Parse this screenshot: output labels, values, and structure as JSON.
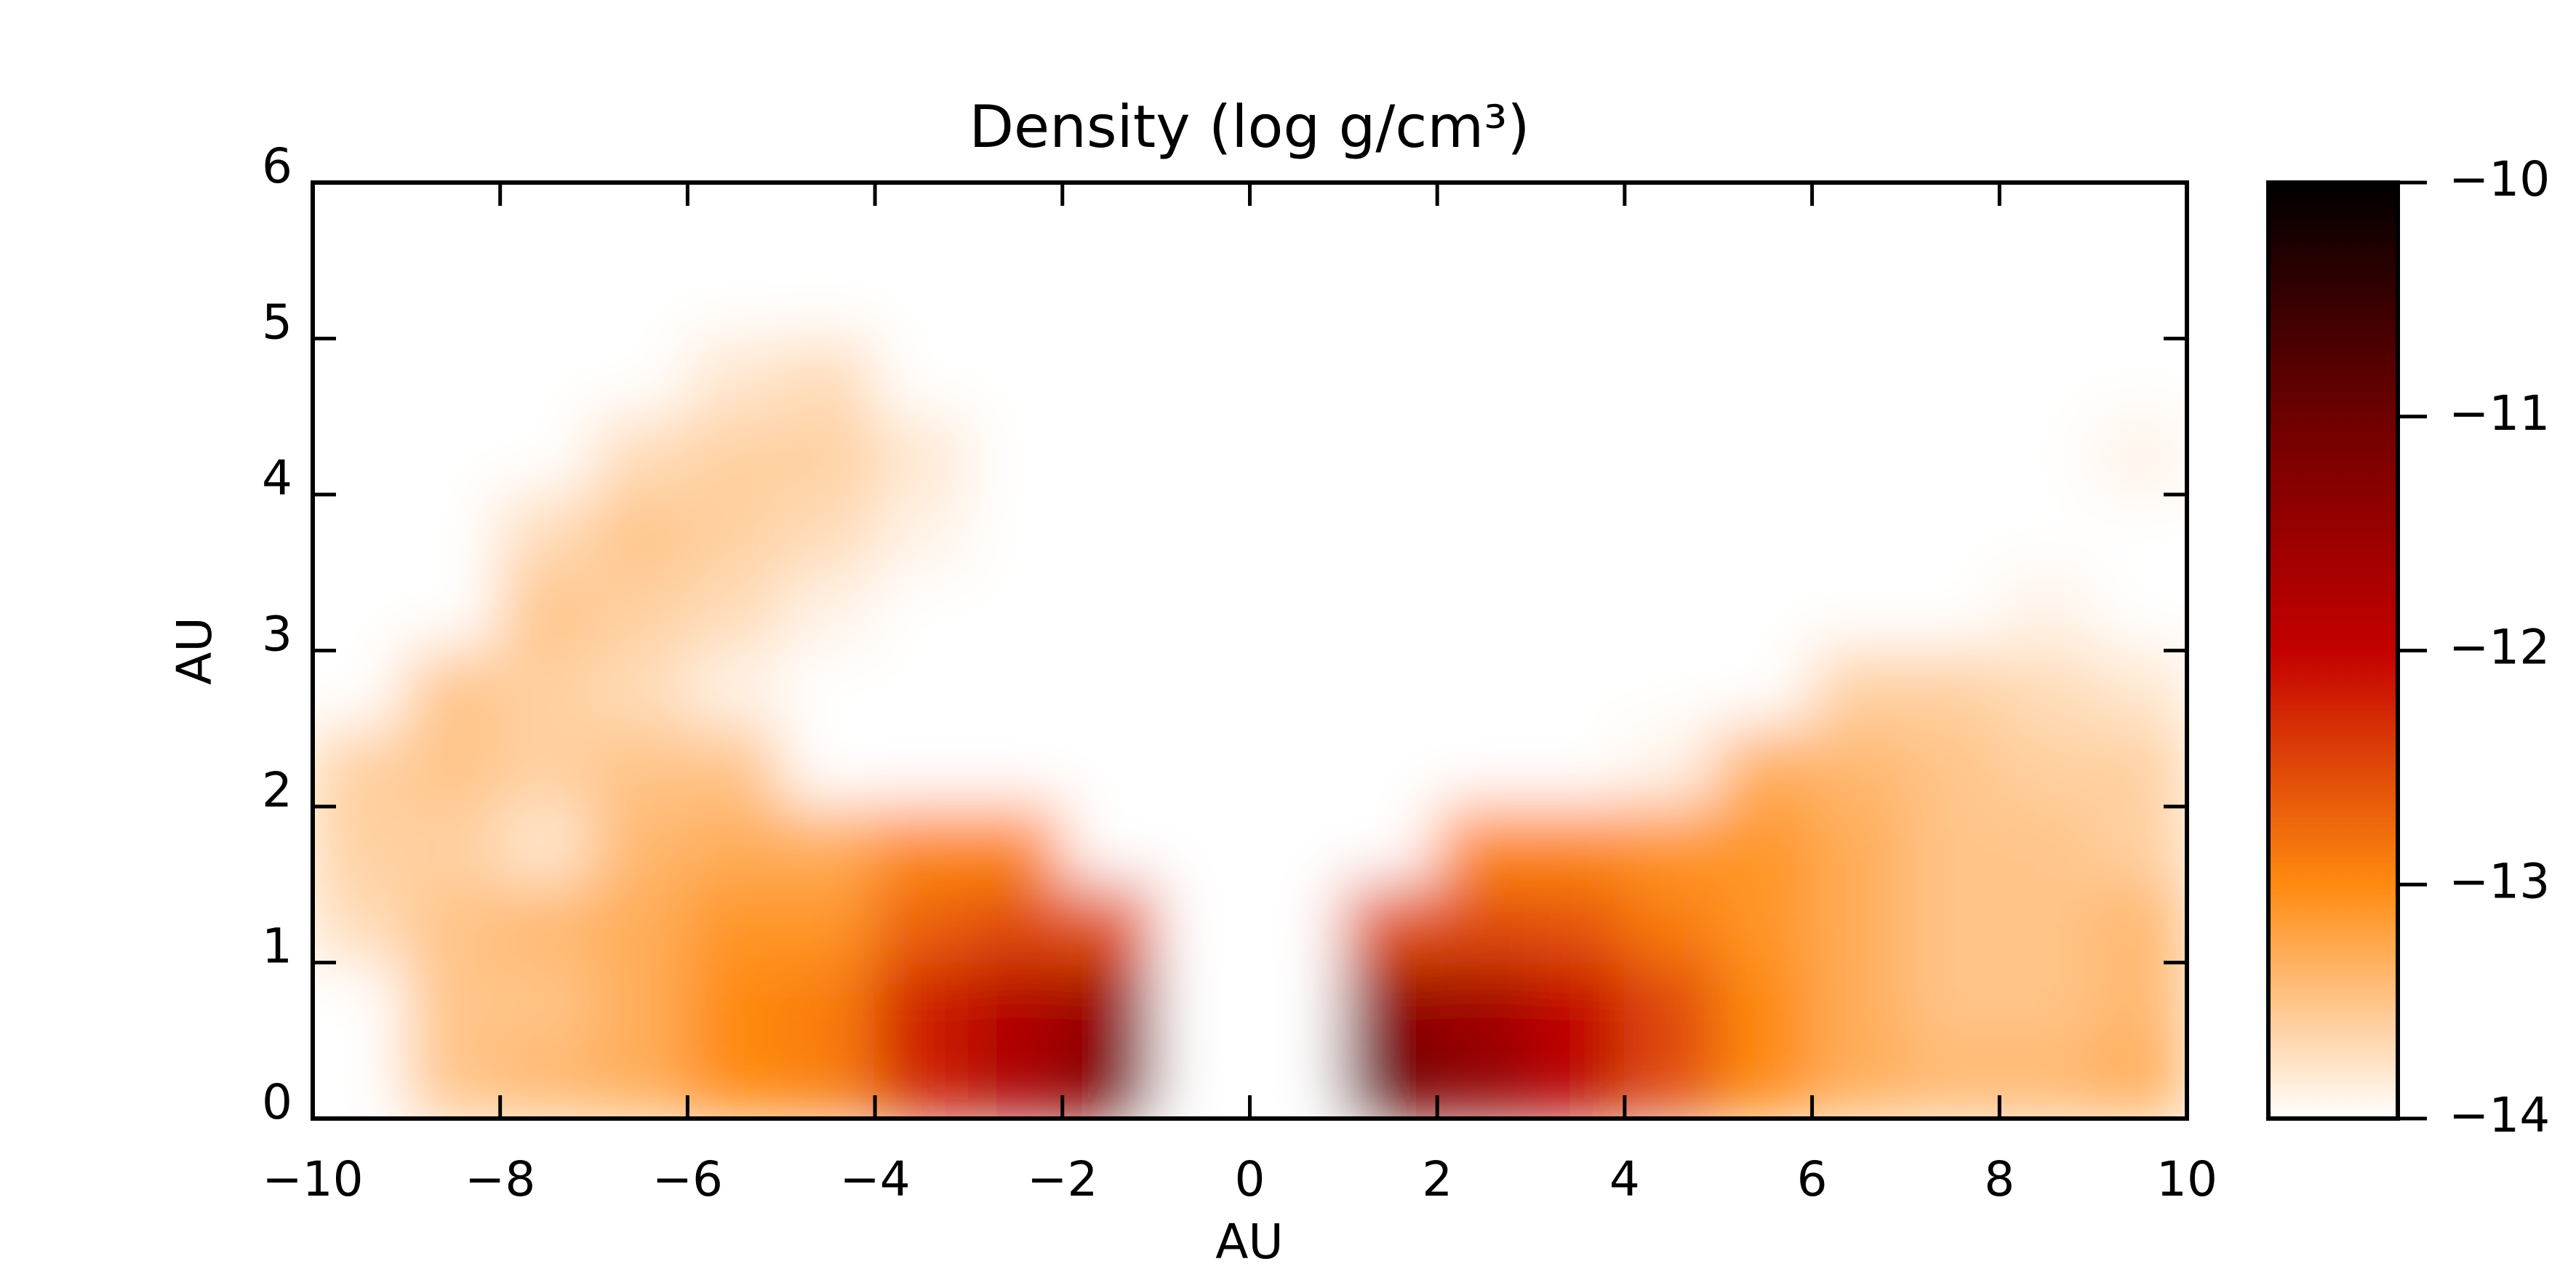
{
  "chart_data": {
    "type": "heatmap",
    "title": "Density (log g/cm³)",
    "x_label": "AU",
    "y_label": "AU",
    "x": [
      -9.5,
      -8.5,
      -7.5,
      -6.5,
      -5.5,
      -4.5,
      -3.5,
      -2.5,
      -1.5,
      -0.5,
      0.5,
      1.5,
      2.5,
      3.5,
      4.5,
      5.5,
      6.5,
      7.5,
      8.5,
      9.5
    ],
    "y": [
      0.25,
      0.75,
      1.25,
      1.75,
      2.25,
      2.75,
      3.25,
      3.75,
      4.25,
      4.75,
      5.25,
      5.75
    ],
    "z": [
      [
        -14,
        -13.5,
        -13.4,
        -13.3,
        -13.0,
        -12.9,
        -12.2,
        -11.7,
        -11.2,
        -14,
        -14,
        -11.0,
        -11.4,
        -11.9,
        -12.5,
        -13.0,
        -13.3,
        -13.4,
        -13.4,
        -13.3
      ],
      [
        -14,
        -13.5,
        -13.5,
        -13.3,
        -13.0,
        -12.9,
        -12.2,
        -11.8,
        -11.5,
        -14,
        -14,
        -11.4,
        -11.6,
        -12.0,
        -12.5,
        -13.0,
        -13.3,
        -13.5,
        -13.5,
        -13.4
      ],
      [
        -13.7,
        -13.5,
        -13.4,
        -13.3,
        -13.1,
        -13.1,
        -12.7,
        -12.5,
        -12.6,
        -14,
        -14,
        -12.6,
        -12.5,
        -12.6,
        -12.9,
        -13.1,
        -13.3,
        -13.5,
        -13.5,
        -13.4
      ],
      [
        -13.6,
        -13.6,
        -13.8,
        -13.4,
        -13.3,
        -13.3,
        -13.0,
        -13.0,
        -14,
        -14,
        -14,
        -14,
        -13.0,
        -13.0,
        -13.1,
        -13.1,
        -13.3,
        -13.5,
        -13.5,
        -13.6
      ],
      [
        -13.6,
        -13.5,
        -13.6,
        -13.5,
        -13.5,
        -14,
        -14,
        -14,
        -14,
        -14,
        -14,
        -14,
        -14,
        -14,
        -13.9,
        -13.3,
        -13.4,
        -13.5,
        -13.6,
        -13.6
      ],
      [
        -14,
        -13.5,
        -13.6,
        -13.7,
        -13.9,
        -14,
        -14,
        -14,
        -14,
        -14,
        -14,
        -14,
        -14,
        -14,
        -14,
        -14,
        -13.6,
        -13.6,
        -13.7,
        -13.8
      ],
      [
        -14,
        -14,
        -13.5,
        -13.6,
        -13.7,
        -13.9,
        -14,
        -14,
        -14,
        -14,
        -14,
        -14,
        -14,
        -14,
        -14,
        -14,
        -14,
        -14,
        -13.9,
        -14
      ],
      [
        -14,
        -14,
        -13.7,
        -13.5,
        -13.6,
        -13.7,
        -13.9,
        -14,
        -14,
        -14,
        -14,
        -14,
        -14,
        -14,
        -14,
        -14,
        -14,
        -14,
        -14,
        -14
      ],
      [
        -14,
        -14,
        -14,
        -13.7,
        -13.6,
        -13.6,
        -13.8,
        -14,
        -14,
        -14,
        -14,
        -14,
        -14,
        -14,
        -14,
        -14,
        -14,
        -14,
        -14,
        -13.9
      ],
      [
        -14,
        -14,
        -14,
        -14,
        -13.8,
        -13.7,
        -14,
        -14,
        -14,
        -14,
        -14,
        -14,
        -14,
        -14,
        -14,
        -14,
        -14,
        -14,
        -14,
        -14
      ],
      [
        -14,
        -14,
        -14,
        -14,
        -14,
        -14,
        -14,
        -14,
        -14,
        -14,
        -14,
        -14,
        -14,
        -14,
        -14,
        -14,
        -14,
        -14,
        -14,
        -14
      ],
      [
        -14,
        -14,
        -14,
        -14,
        -14,
        -14,
        -14,
        -14,
        -14,
        -14,
        -14,
        -14,
        -14,
        -14,
        -14,
        -14,
        -14,
        -14,
        -14,
        -14
      ]
    ],
    "xlim": [
      -10,
      10
    ],
    "ylim": [
      0,
      6
    ],
    "xticks": [
      {
        "value": -10,
        "label": "−10"
      },
      {
        "value": -8,
        "label": "−8"
      },
      {
        "value": -6,
        "label": "−6"
      },
      {
        "value": -4,
        "label": "−4"
      },
      {
        "value": -2,
        "label": "−2"
      },
      0,
      2,
      4,
      6,
      8,
      10
    ],
    "yticks": [
      0,
      1,
      2,
      3,
      4,
      5,
      6
    ],
    "clim": [
      -14,
      -10
    ],
    "cticks": [
      {
        "value": -10,
        "label": "−10"
      },
      {
        "value": -11,
        "label": "−11"
      },
      {
        "value": -12,
        "label": "−12"
      },
      {
        "value": -13,
        "label": "−13"
      },
      {
        "value": -14,
        "label": "−14"
      }
    ],
    "colorscale": [
      [
        -14,
        "#ffffff"
      ],
      [
        -13.5,
        "#ffc488"
      ],
      [
        -13,
        "#ff8a10"
      ],
      [
        -12.5,
        "#e04808"
      ],
      [
        -12,
        "#c40000"
      ],
      [
        -11,
        "#6e0000"
      ],
      [
        -10,
        "#000000"
      ]
    ]
  }
}
